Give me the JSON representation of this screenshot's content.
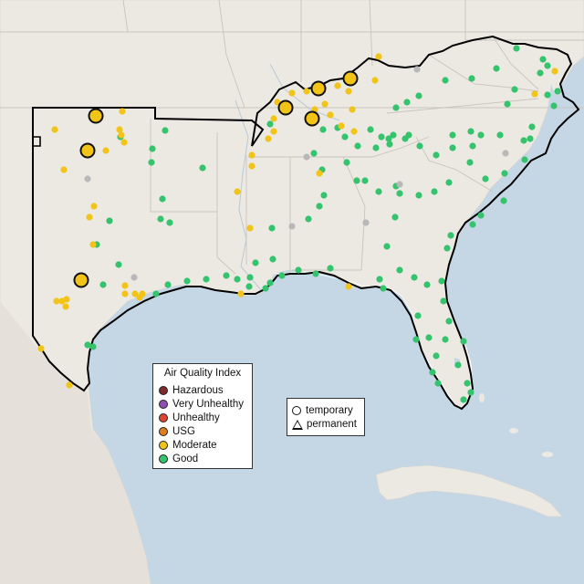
{
  "legend": {
    "title": "Air Quality Index",
    "items": [
      {
        "label": "Hazardous",
        "color": "#7e2b2b"
      },
      {
        "label": "Very Unhealthy",
        "color": "#8f4fb0"
      },
      {
        "label": "Unhealthy",
        "color": "#e0452f"
      },
      {
        "label": "USG",
        "color": "#e07e1d"
      },
      {
        "label": "Moderate",
        "color": "#f2c417"
      },
      {
        "label": "Good",
        "color": "#35c36d"
      }
    ]
  },
  "monitor_types": {
    "temporary": "temporary",
    "permanent": "permanent"
  },
  "colors": {
    "water": "#c5d6e4",
    "land": "#ece9e3",
    "good": "#35c36d",
    "moderate": "#f2c417",
    "nodata": "#b8b8b8",
    "region_outline": "#000000"
  }
}
